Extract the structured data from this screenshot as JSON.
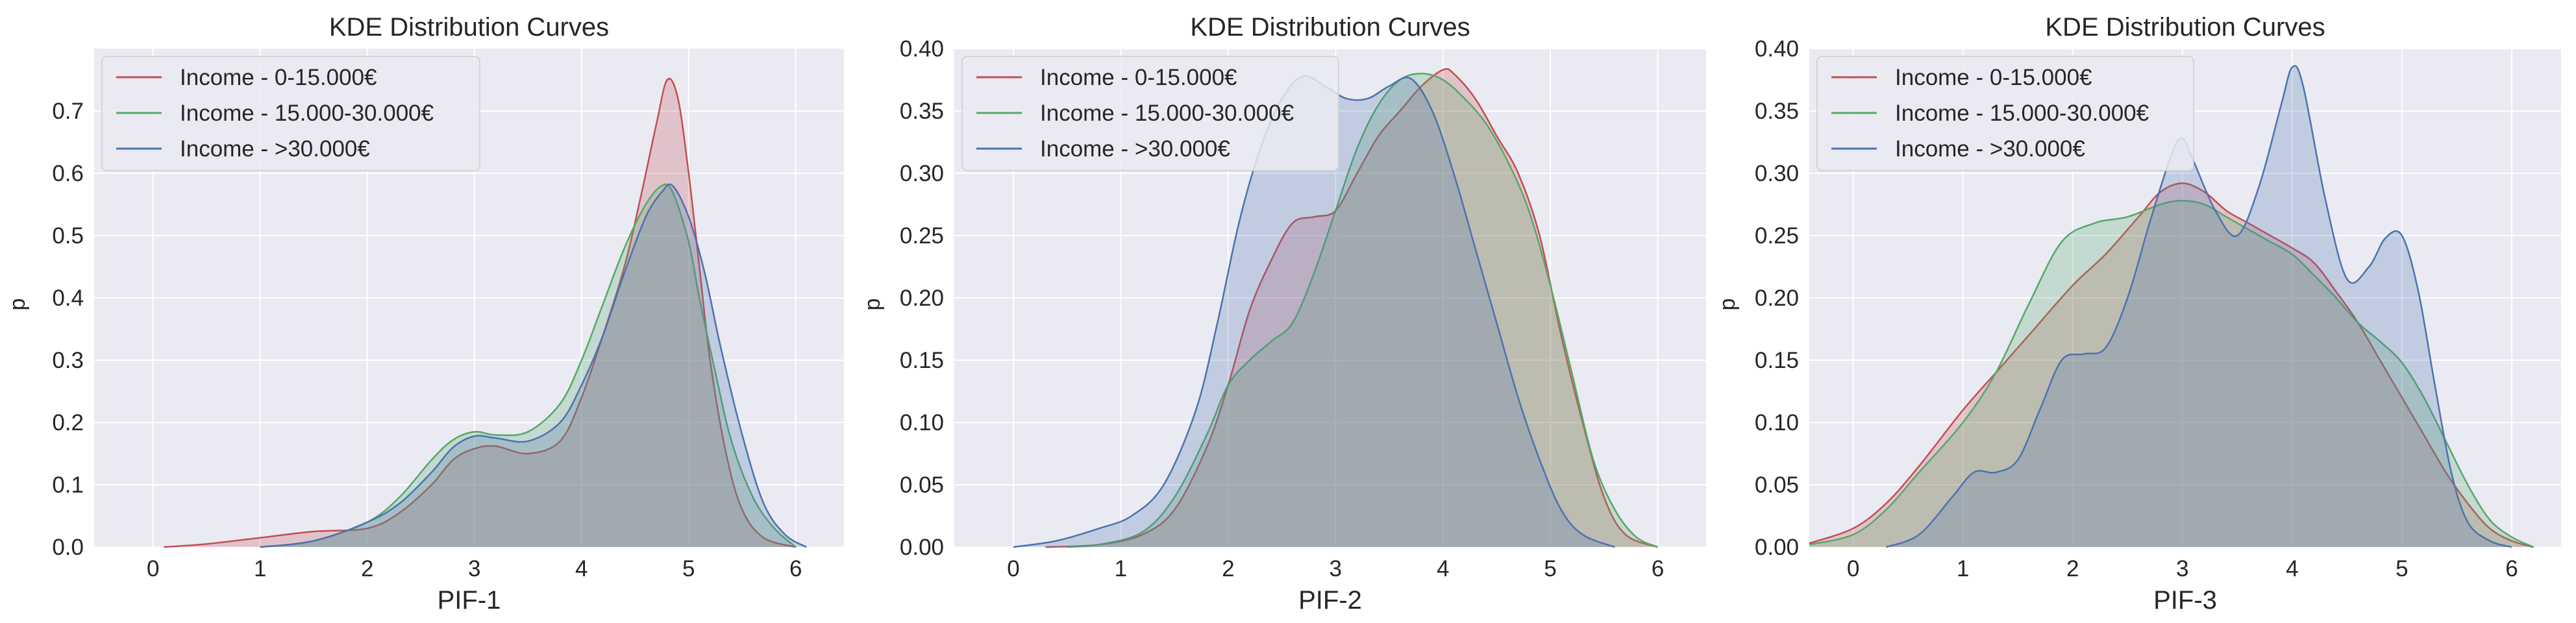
{
  "chart_data": [
    {
      "type": "area",
      "title": "KDE Distribution Curves",
      "xlabel": "PIF-1",
      "ylabel": "p",
      "xlim": [
        -0.55,
        6.45
      ],
      "ylim": [
        0,
        0.8
      ],
      "xticks": [
        "0",
        "1",
        "2",
        "3",
        "4",
        "5",
        "6"
      ],
      "yticks": [
        "0.0",
        "0.1",
        "0.2",
        "0.3",
        "0.4",
        "0.5",
        "0.6",
        "0.7"
      ],
      "legend_position": "top-left",
      "series": [
        {
          "name": "Income - 0-15.000€",
          "color": "#c44e52",
          "x": [
            0.1,
            0.5,
            1.0,
            1.5,
            2.0,
            2.3,
            2.6,
            2.8,
            3.0,
            3.2,
            3.5,
            3.8,
            4.0,
            4.2,
            4.4,
            4.55,
            4.7,
            4.8,
            4.9,
            5.0,
            5.1,
            5.2,
            5.35,
            5.5,
            5.7,
            6.0
          ],
          "y": [
            0.0,
            0.005,
            0.015,
            0.025,
            0.03,
            0.055,
            0.1,
            0.14,
            0.158,
            0.162,
            0.15,
            0.17,
            0.24,
            0.34,
            0.45,
            0.56,
            0.68,
            0.75,
            0.72,
            0.6,
            0.45,
            0.3,
            0.15,
            0.06,
            0.015,
            0.0
          ]
        },
        {
          "name": "Income - 15.000-30.000€",
          "color": "#55a868",
          "x": [
            1.0,
            1.5,
            2.0,
            2.3,
            2.6,
            2.8,
            3.0,
            3.2,
            3.5,
            3.8,
            4.0,
            4.2,
            4.4,
            4.6,
            4.75,
            4.85,
            5.0,
            5.1,
            5.25,
            5.4,
            5.6,
            5.8,
            6.0
          ],
          "y": [
            0.0,
            0.01,
            0.04,
            0.08,
            0.14,
            0.172,
            0.185,
            0.18,
            0.185,
            0.23,
            0.3,
            0.39,
            0.48,
            0.55,
            0.58,
            0.57,
            0.49,
            0.4,
            0.28,
            0.17,
            0.08,
            0.03,
            0.0
          ]
        },
        {
          "name": "Income - >30.000€",
          "color": "#4c72b0",
          "x": [
            1.0,
            1.5,
            2.0,
            2.3,
            2.6,
            2.8,
            3.0,
            3.2,
            3.5,
            3.8,
            4.0,
            4.2,
            4.4,
            4.6,
            4.75,
            4.85,
            5.0,
            5.15,
            5.3,
            5.5,
            5.7,
            5.9,
            6.1
          ],
          "y": [
            0.0,
            0.01,
            0.04,
            0.07,
            0.12,
            0.16,
            0.178,
            0.175,
            0.17,
            0.2,
            0.26,
            0.34,
            0.44,
            0.53,
            0.57,
            0.58,
            0.53,
            0.44,
            0.32,
            0.18,
            0.07,
            0.02,
            0.0
          ]
        }
      ]
    },
    {
      "type": "area",
      "title": "KDE Distribution Curves",
      "xlabel": "PIF-2",
      "ylabel": "p",
      "xlim": [
        -0.55,
        6.45
      ],
      "ylim": [
        0,
        0.4
      ],
      "xticks": [
        "0",
        "1",
        "2",
        "3",
        "4",
        "5",
        "6"
      ],
      "yticks": [
        "0.00",
        "0.05",
        "0.10",
        "0.15",
        "0.20",
        "0.25",
        "0.30",
        "0.35",
        "0.40"
      ],
      "legend_position": "top-left",
      "series": [
        {
          "name": "Income - 0-15.000€",
          "color": "#c44e52",
          "x": [
            0.3,
            0.8,
            1.2,
            1.5,
            1.8,
            2.0,
            2.2,
            2.4,
            2.6,
            2.8,
            3.0,
            3.2,
            3.4,
            3.6,
            3.8,
            4.0,
            4.1,
            4.3,
            4.5,
            4.7,
            4.9,
            5.1,
            5.3,
            5.5,
            5.7,
            6.0
          ],
          "y": [
            0.0,
            0.002,
            0.01,
            0.03,
            0.08,
            0.13,
            0.19,
            0.23,
            0.26,
            0.265,
            0.27,
            0.3,
            0.33,
            0.35,
            0.37,
            0.383,
            0.38,
            0.36,
            0.33,
            0.3,
            0.25,
            0.17,
            0.1,
            0.04,
            0.01,
            0.0
          ]
        },
        {
          "name": "Income - 15.000-30.000€",
          "color": "#55a868",
          "x": [
            0.5,
            0.8,
            1.2,
            1.5,
            1.8,
            2.0,
            2.2,
            2.4,
            2.6,
            2.8,
            3.0,
            3.2,
            3.4,
            3.6,
            3.8,
            4.0,
            4.2,
            4.4,
            4.6,
            4.8,
            5.0,
            5.2,
            5.4,
            5.6,
            5.8,
            6.0
          ],
          "y": [
            0.0,
            0.002,
            0.012,
            0.04,
            0.09,
            0.13,
            0.15,
            0.165,
            0.18,
            0.22,
            0.27,
            0.32,
            0.355,
            0.375,
            0.38,
            0.375,
            0.36,
            0.34,
            0.31,
            0.27,
            0.21,
            0.14,
            0.07,
            0.03,
            0.008,
            0.0
          ]
        },
        {
          "name": "Income - >30.000€",
          "color": "#4c72b0",
          "x": [
            0.0,
            0.4,
            0.8,
            1.1,
            1.4,
            1.7,
            1.9,
            2.1,
            2.3,
            2.5,
            2.7,
            2.9,
            3.1,
            3.3,
            3.5,
            3.7,
            3.9,
            4.1,
            4.3,
            4.5,
            4.7,
            4.9,
            5.1,
            5.3,
            5.6
          ],
          "y": [
            0.0,
            0.005,
            0.015,
            0.025,
            0.05,
            0.11,
            0.18,
            0.26,
            0.32,
            0.36,
            0.378,
            0.37,
            0.36,
            0.36,
            0.37,
            0.376,
            0.35,
            0.3,
            0.24,
            0.18,
            0.12,
            0.07,
            0.03,
            0.01,
            0.0
          ]
        }
      ]
    },
    {
      "type": "area",
      "title": "KDE Distribution Curves",
      "xlabel": "PIF-3",
      "ylabel": "p",
      "xlim": [
        -0.4,
        6.45
      ],
      "ylim": [
        0,
        0.4
      ],
      "xticks": [
        "0",
        "1",
        "2",
        "3",
        "4",
        "5",
        "6"
      ],
      "yticks": [
        "0.00",
        "0.05",
        "0.10",
        "0.15",
        "0.20",
        "0.25",
        "0.30",
        "0.35",
        "0.40"
      ],
      "legend_position": "top-left",
      "series": [
        {
          "name": "Income - 0-15.000€",
          "color": "#c44e52",
          "x": [
            -0.4,
            0.0,
            0.3,
            0.6,
            1.0,
            1.3,
            1.6,
            2.0,
            2.3,
            2.6,
            2.8,
            3.0,
            3.2,
            3.4,
            3.6,
            3.8,
            4.0,
            4.2,
            4.4,
            4.6,
            4.8,
            5.0,
            5.2,
            5.4,
            5.6,
            5.8,
            6.0,
            6.2
          ],
          "y": [
            0.003,
            0.015,
            0.035,
            0.065,
            0.11,
            0.14,
            0.17,
            0.21,
            0.235,
            0.265,
            0.285,
            0.292,
            0.285,
            0.27,
            0.26,
            0.25,
            0.24,
            0.228,
            0.205,
            0.18,
            0.15,
            0.12,
            0.09,
            0.06,
            0.035,
            0.015,
            0.005,
            0.0
          ]
        },
        {
          "name": "Income - 15.000-30.000€",
          "color": "#55a868",
          "x": [
            -0.4,
            0.0,
            0.3,
            0.6,
            1.0,
            1.3,
            1.6,
            1.9,
            2.2,
            2.5,
            2.8,
            3.0,
            3.2,
            3.4,
            3.6,
            3.8,
            4.0,
            4.2,
            4.4,
            4.6,
            4.8,
            5.0,
            5.2,
            5.4,
            5.6,
            5.8,
            6.0,
            6.2
          ],
          "y": [
            0.002,
            0.01,
            0.03,
            0.06,
            0.1,
            0.14,
            0.195,
            0.245,
            0.26,
            0.265,
            0.275,
            0.278,
            0.275,
            0.265,
            0.255,
            0.245,
            0.235,
            0.218,
            0.2,
            0.18,
            0.165,
            0.148,
            0.12,
            0.085,
            0.05,
            0.022,
            0.008,
            0.0
          ]
        },
        {
          "name": "Income - >30.000€",
          "color": "#4c72b0",
          "x": [
            0.3,
            0.6,
            0.9,
            1.1,
            1.3,
            1.5,
            1.7,
            1.9,
            2.1,
            2.3,
            2.5,
            2.7,
            2.9,
            3.0,
            3.1,
            3.3,
            3.5,
            3.7,
            3.9,
            4.0,
            4.1,
            4.3,
            4.5,
            4.7,
            4.85,
            5.0,
            5.15,
            5.3,
            5.45,
            5.6,
            5.8,
            6.0
          ],
          "y": [
            0.0,
            0.01,
            0.04,
            0.06,
            0.06,
            0.07,
            0.11,
            0.15,
            0.155,
            0.16,
            0.2,
            0.26,
            0.315,
            0.328,
            0.31,
            0.27,
            0.25,
            0.29,
            0.355,
            0.385,
            0.37,
            0.28,
            0.215,
            0.225,
            0.248,
            0.25,
            0.205,
            0.13,
            0.06,
            0.02,
            0.005,
            0.0
          ]
        }
      ]
    }
  ]
}
